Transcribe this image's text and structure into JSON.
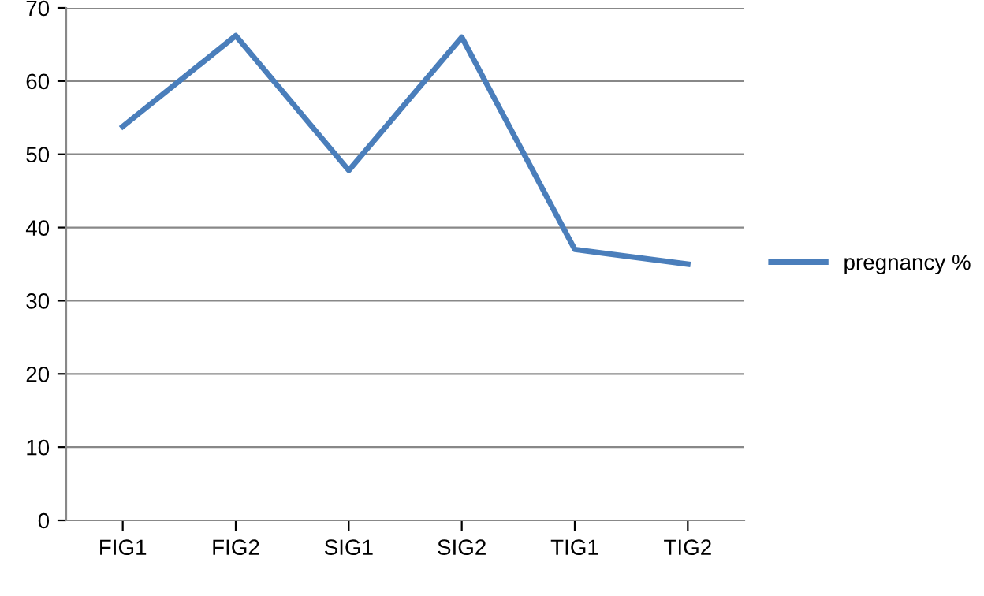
{
  "chart_data": {
    "type": "line",
    "categories": [
      "FIG1",
      "FIG2",
      "SIG1",
      "SIG2",
      "TIG1",
      "TIG2"
    ],
    "series": [
      {
        "name": "pregnancy %",
        "color": "#4a7ebb",
        "values": [
          53.8,
          66.2,
          47.8,
          66,
          37,
          35
        ]
      }
    ],
    "ylim": [
      0,
      70
    ],
    "yticks": [
      0,
      10,
      20,
      30,
      40,
      50,
      60,
      70
    ],
    "grid": "y",
    "legend": "right",
    "marker": "none",
    "line_style": "solid"
  }
}
